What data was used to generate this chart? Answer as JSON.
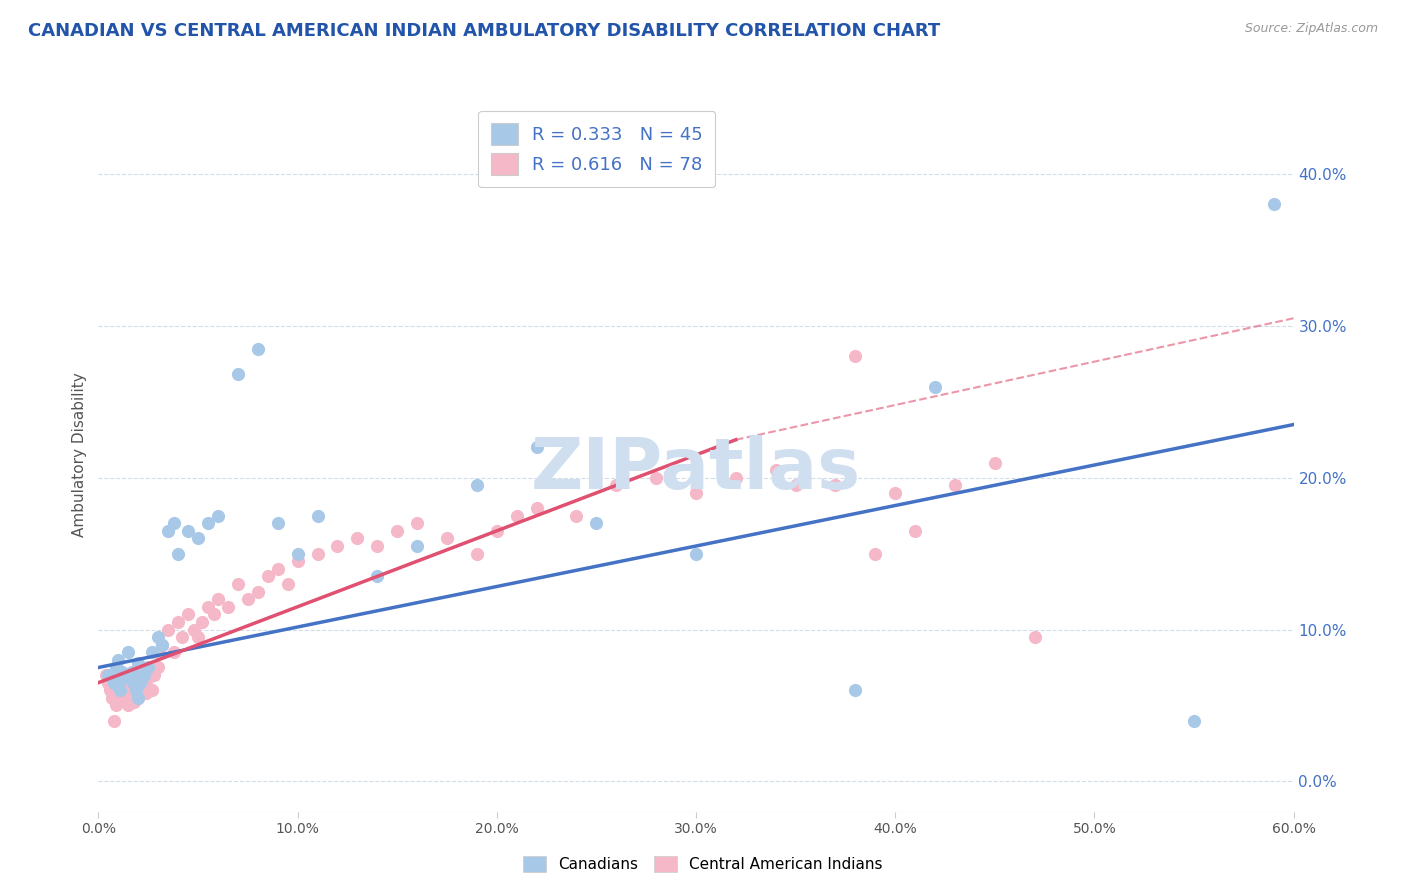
{
  "title": "CANADIAN VS CENTRAL AMERICAN INDIAN AMBULATORY DISABILITY CORRELATION CHART",
  "source": "Source: ZipAtlas.com",
  "ylabel": "Ambulatory Disability",
  "xlabel": "",
  "xlim": [
    0.0,
    0.6
  ],
  "ylim": [
    -0.02,
    0.45
  ],
  "plot_ylim": [
    0.0,
    0.45
  ],
  "xticks": [
    0.0,
    0.1,
    0.2,
    0.3,
    0.4,
    0.5,
    0.6
  ],
  "yticks": [
    0.0,
    0.1,
    0.2,
    0.3,
    0.4
  ],
  "ytick_labels_right": [
    "0.0%",
    "10.0%",
    "20.0%",
    "30.0%",
    "40.0%"
  ],
  "xtick_labels": [
    "0.0%",
    "10.0%",
    "20.0%",
    "30.0%",
    "40.0%",
    "50.0%",
    "60.0%"
  ],
  "legend1_label": "R = 0.333   N = 45",
  "legend2_label": "R = 0.616   N = 78",
  "series1_name": "Canadians",
  "series2_name": "Central American Indians",
  "series1_color": "#a8c8e8",
  "series2_color": "#f5b8c8",
  "series1_line_color": "#4472C4",
  "series2_line_color": "#E05070",
  "background_color": "#ffffff",
  "grid_color": "#d0dde8",
  "title_color": "#2255aa",
  "watermark": "ZIPatlas",
  "watermark_color": "#d0dff0",
  "blue_line_x0": 0.0,
  "blue_line_y0": 0.075,
  "blue_line_x1": 0.6,
  "blue_line_y1": 0.235,
  "pink_line_x0": 0.0,
  "pink_line_y0": 0.065,
  "pink_line_x1": 0.32,
  "pink_line_y1": 0.225,
  "dash_line_x0": 0.32,
  "dash_line_y0": 0.225,
  "dash_line_x1": 0.6,
  "dash_line_y1": 0.305,
  "canadians_x": [
    0.005,
    0.008,
    0.009,
    0.01,
    0.01,
    0.011,
    0.012,
    0.013,
    0.014,
    0.015,
    0.016,
    0.017,
    0.018,
    0.019,
    0.02,
    0.02,
    0.021,
    0.022,
    0.023,
    0.025,
    0.027,
    0.03,
    0.032,
    0.035,
    0.038,
    0.04,
    0.045,
    0.05,
    0.055,
    0.06,
    0.07,
    0.08,
    0.09,
    0.1,
    0.11,
    0.14,
    0.16,
    0.19,
    0.22,
    0.25,
    0.3,
    0.38,
    0.42,
    0.55,
    0.59
  ],
  "canadians_y": [
    0.07,
    0.065,
    0.075,
    0.065,
    0.08,
    0.06,
    0.072,
    0.068,
    0.07,
    0.085,
    0.068,
    0.072,
    0.064,
    0.06,
    0.055,
    0.078,
    0.065,
    0.068,
    0.07,
    0.075,
    0.085,
    0.095,
    0.09,
    0.165,
    0.17,
    0.15,
    0.165,
    0.16,
    0.17,
    0.175,
    0.268,
    0.285,
    0.17,
    0.15,
    0.175,
    0.135,
    0.155,
    0.195,
    0.22,
    0.17,
    0.15,
    0.06,
    0.26,
    0.04,
    0.38
  ],
  "central_x": [
    0.004,
    0.005,
    0.006,
    0.007,
    0.008,
    0.008,
    0.009,
    0.009,
    0.01,
    0.01,
    0.011,
    0.012,
    0.013,
    0.014,
    0.015,
    0.015,
    0.016,
    0.017,
    0.018,
    0.019,
    0.02,
    0.02,
    0.021,
    0.022,
    0.023,
    0.024,
    0.025,
    0.026,
    0.027,
    0.028,
    0.03,
    0.03,
    0.032,
    0.035,
    0.038,
    0.04,
    0.042,
    0.045,
    0.048,
    0.05,
    0.052,
    0.055,
    0.058,
    0.06,
    0.065,
    0.07,
    0.075,
    0.08,
    0.085,
    0.09,
    0.095,
    0.1,
    0.11,
    0.12,
    0.13,
    0.14,
    0.15,
    0.16,
    0.175,
    0.19,
    0.2,
    0.21,
    0.22,
    0.24,
    0.26,
    0.28,
    0.3,
    0.32,
    0.34,
    0.35,
    0.37,
    0.38,
    0.39,
    0.4,
    0.41,
    0.43,
    0.45,
    0.47
  ],
  "central_y": [
    0.07,
    0.065,
    0.06,
    0.055,
    0.06,
    0.04,
    0.05,
    0.065,
    0.055,
    0.06,
    0.055,
    0.06,
    0.065,
    0.055,
    0.05,
    0.07,
    0.062,
    0.058,
    0.052,
    0.06,
    0.072,
    0.055,
    0.065,
    0.068,
    0.06,
    0.058,
    0.068,
    0.072,
    0.06,
    0.07,
    0.085,
    0.075,
    0.09,
    0.1,
    0.085,
    0.105,
    0.095,
    0.11,
    0.1,
    0.095,
    0.105,
    0.115,
    0.11,
    0.12,
    0.115,
    0.13,
    0.12,
    0.125,
    0.135,
    0.14,
    0.13,
    0.145,
    0.15,
    0.155,
    0.16,
    0.155,
    0.165,
    0.17,
    0.16,
    0.15,
    0.165,
    0.175,
    0.18,
    0.175,
    0.195,
    0.2,
    0.19,
    0.2,
    0.205,
    0.195,
    0.195,
    0.28,
    0.15,
    0.19,
    0.165,
    0.195,
    0.21,
    0.095
  ]
}
